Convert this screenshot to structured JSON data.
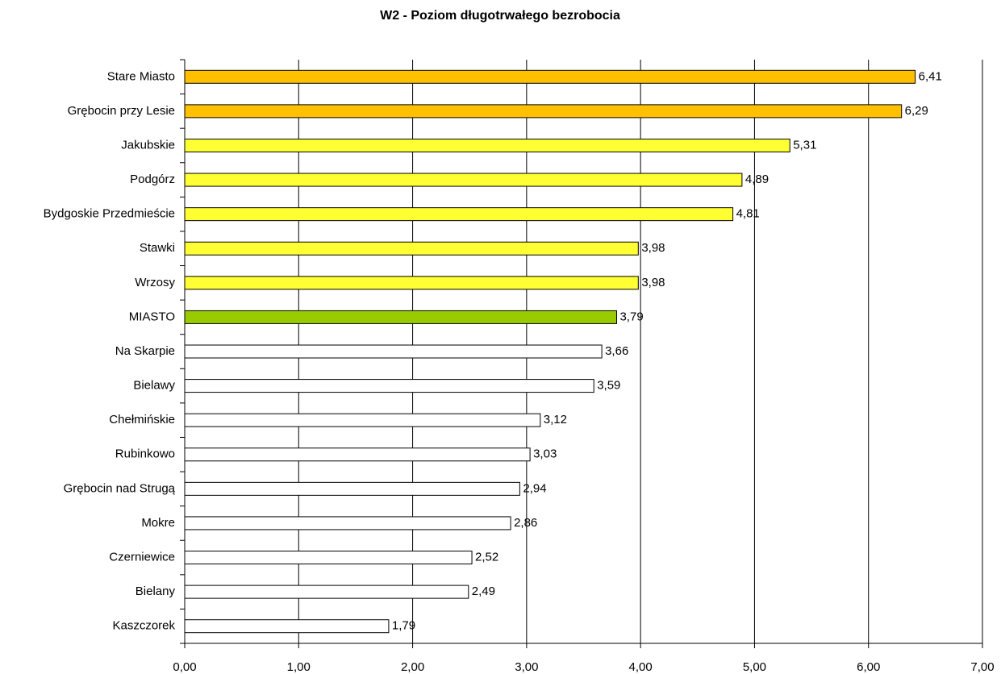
{
  "chart_data": {
    "type": "bar",
    "orientation": "horizontal",
    "title": "W2 - Poziom długotrwałego bezrobocia",
    "categories": [
      "Stare Miasto",
      "Grębocin przy Lesie",
      "Jakubskie",
      "Podgórz",
      "Bydgoskie Przedmieście",
      "Stawki",
      "Wrzosy",
      "MIASTO",
      "Na Skarpie",
      "Bielawy",
      "Chełmińskie",
      "Rubinkowo",
      "Grębocin nad Strugą",
      "Mokre",
      "Czerniewice",
      "Bielany",
      "Kaszczorek"
    ],
    "values": [
      6.41,
      6.29,
      5.31,
      4.89,
      4.81,
      3.98,
      3.98,
      3.79,
      3.66,
      3.59,
      3.12,
      3.03,
      2.94,
      2.86,
      2.52,
      2.49,
      1.79
    ],
    "value_labels": [
      "6,41",
      "6,29",
      "5,31",
      "4,89",
      "4,81",
      "3,98",
      "3,98",
      "3,79",
      "3,66",
      "3,59",
      "3,12",
      "3,03",
      "2,94",
      "2,86",
      "2,52",
      "2,49",
      "1,79"
    ],
    "colors": [
      "#ffc000",
      "#ffc000",
      "#ffff33",
      "#ffff33",
      "#ffff33",
      "#ffff33",
      "#ffff33",
      "#99cc00",
      "#ffffff",
      "#ffffff",
      "#ffffff",
      "#ffffff",
      "#ffffff",
      "#ffffff",
      "#ffffff",
      "#ffffff",
      "#ffffff"
    ],
    "xlim": [
      0,
      7
    ],
    "xticks": [
      {
        "value": 0,
        "label": "0,00"
      },
      {
        "value": 1,
        "label": "1,00"
      },
      {
        "value": 2,
        "label": "2,00"
      },
      {
        "value": 3,
        "label": "3,00"
      },
      {
        "value": 4,
        "label": "4,00"
      },
      {
        "value": 5,
        "label": "5,00"
      },
      {
        "value": 6,
        "label": "6,00"
      },
      {
        "value": 7,
        "label": "7,00"
      }
    ],
    "grid": true
  }
}
